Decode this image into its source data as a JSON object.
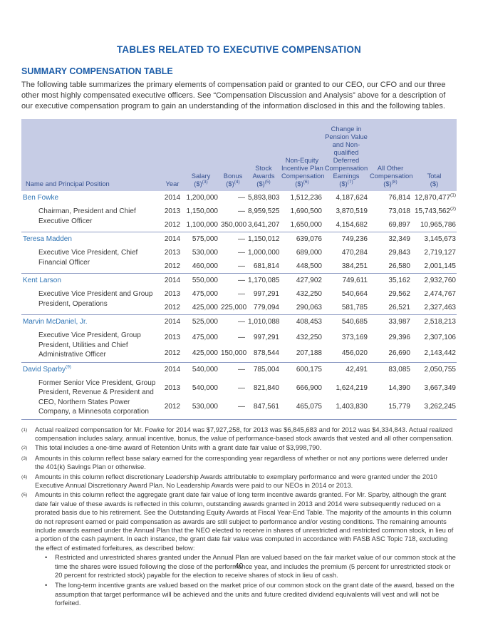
{
  "page": {
    "title": "TABLES RELATED TO EXECUTIVE COMPENSATION",
    "section_heading": "SUMMARY COMPENSATION TABLE",
    "intro": "The following table summarizes the primary elements of compensation paid or granted to our CEO, our CFO and our three other most highly compensated executive officers. See “Compensation Discussion and Analysis” above for a description of our executive compensation program to gain an understanding of the information disclosed in this and the following tables.",
    "page_number": "40"
  },
  "colors": {
    "heading_blue": "#1b5ca8",
    "name_link_blue": "#2e74b5",
    "table_header_bg": "#c6cce5",
    "table_header_text": "#35508f",
    "group_divider": "#8f9cc4",
    "body_text": "#3a3a3a"
  },
  "table": {
    "columns": [
      {
        "lines": [
          "Name and Principal Position"
        ],
        "sup": ""
      },
      {
        "lines": [
          "Year"
        ],
        "sup": ""
      },
      {
        "lines": [
          "Salary",
          "($)"
        ],
        "sup": "3"
      },
      {
        "lines": [
          "Bonus",
          "($)"
        ],
        "sup": "4"
      },
      {
        "lines": [
          "Stock",
          "Awards",
          "($)"
        ],
        "sup": "5"
      },
      {
        "lines": [
          "Non-Equity",
          "Incentive Plan",
          "Compensation",
          "($)"
        ],
        "sup": "6"
      },
      {
        "lines": [
          "Change in",
          "Pension Value",
          "and Non-",
          "qualified",
          "Deferred",
          "Compensation",
          "Earnings",
          "($)"
        ],
        "sup": "7"
      },
      {
        "lines": [
          "All Other",
          "Compensation",
          "($)"
        ],
        "sup": "8"
      },
      {
        "lines": [
          "Total",
          "($)"
        ],
        "sup": ""
      }
    ],
    "groups": [
      {
        "name": "Ben Fowke",
        "name_sup": "",
        "position_lines": [
          "Chairman, President and Chief",
          "Executive Officer"
        ],
        "rows": [
          {
            "values": [
              "2014",
              "1,200,000",
              "—",
              "5,893,803",
              "1,512,236",
              "4,187,624",
              "76,814",
              "12,870,477"
            ],
            "total_sup": "1"
          },
          {
            "values": [
              "2013",
              "1,150,000",
              "—",
              "8,959,525",
              "1,690,500",
              "3,870,519",
              "73,018",
              "15,743,562"
            ],
            "total_sup": "2"
          },
          {
            "values": [
              "2012",
              "1,100,000",
              "350,000",
              "3,641,207",
              "1,650,000",
              "4,154,682",
              "69,897",
              "10,965,786"
            ],
            "total_sup": ""
          }
        ]
      },
      {
        "name": "Teresa Madden",
        "name_sup": "",
        "position_lines": [
          "Executive Vice President, Chief",
          "Financial Officer"
        ],
        "rows": [
          {
            "values": [
              "2014",
              "575,000",
              "—",
              "1,150,012",
              "639,076",
              "749,236",
              "32,349",
              "3,145,673"
            ],
            "total_sup": ""
          },
          {
            "values": [
              "2013",
              "530,000",
              "—",
              "1,000,000",
              "689,000",
              "470,284",
              "29,843",
              "2,719,127"
            ],
            "total_sup": ""
          },
          {
            "values": [
              "2012",
              "460,000",
              "—",
              "681,814",
              "448,500",
              "384,251",
              "26,580",
              "2,001,145"
            ],
            "total_sup": ""
          }
        ]
      },
      {
        "name": "Kent Larson",
        "name_sup": "",
        "position_lines": [
          "Executive Vice President and Group",
          "President, Operations"
        ],
        "rows": [
          {
            "values": [
              "2014",
              "550,000",
              "—",
              "1,170,085",
              "427,902",
              "749,611",
              "35,162",
              "2,932,760"
            ],
            "total_sup": ""
          },
          {
            "values": [
              "2013",
              "475,000",
              "—",
              "997,291",
              "432,250",
              "540,664",
              "29,562",
              "2,474,767"
            ],
            "total_sup": ""
          },
          {
            "values": [
              "2012",
              "425,000",
              "225,000",
              "779,094",
              "290,063",
              "581,785",
              "26,521",
              "2,327,463"
            ],
            "total_sup": ""
          }
        ]
      },
      {
        "name": "Marvin McDaniel, Jr.",
        "name_sup": "",
        "position_lines": [
          "Executive Vice President, Group",
          "President, Utilities and Chief",
          "Administrative Officer"
        ],
        "rows": [
          {
            "values": [
              "2014",
              "525,000",
              "—",
              "1,010,088",
              "408,453",
              "540,685",
              "33,987",
              "2,518,213"
            ],
            "total_sup": ""
          },
          {
            "values": [
              "2013",
              "475,000",
              "—",
              "997,291",
              "432,250",
              "373,169",
              "29,396",
              "2,307,106"
            ],
            "total_sup": ""
          },
          {
            "values": [
              "2012",
              "425,000",
              "150,000",
              "878,544",
              "207,188",
              "456,020",
              "26,690",
              "2,143,442"
            ],
            "total_sup": ""
          }
        ]
      },
      {
        "name": "David Sparby",
        "name_sup": "9",
        "position_lines": [
          "Former Senior Vice President, Group",
          "President, Revenue & President and",
          "CEO, Northern States Power",
          "Company, a Minnesota corporation"
        ],
        "rows": [
          {
            "values": [
              "2014",
              "540,000",
              "—",
              "785,004",
              "600,175",
              "42,491",
              "83,085",
              "2,050,755"
            ],
            "total_sup": ""
          },
          {
            "values": [
              "2013",
              "540,000",
              "—",
              "821,840",
              "666,900",
              "1,624,219",
              "14,390",
              "3,667,349"
            ],
            "total_sup": ""
          },
          {
            "values": [
              "2012",
              "530,000",
              "—",
              "847,561",
              "465,075",
              "1,403,830",
              "15,779",
              "3,262,245"
            ],
            "total_sup": ""
          }
        ]
      }
    ]
  },
  "footnotes": [
    {
      "marker": "(1)",
      "text": "Actual realized compensation for Mr. Fowke for 2014 was $7,927,258, for 2013 was $6,845,683 and for 2012 was $4,334,843. Actual realized compensation includes salary, annual incentive, bonus, the value of performance-based stock awards that vested and all other compensation.",
      "bullets": []
    },
    {
      "marker": "(2)",
      "text": "This total includes a one-time award of Retention Units with a grant date fair value of $3,998,790.",
      "bullets": []
    },
    {
      "marker": "(3)",
      "text": "Amounts in this column reflect base salary earned for the corresponding year regardless of whether or not any portions were deferred under the 401(k) Savings Plan or otherwise.",
      "bullets": []
    },
    {
      "marker": "(4)",
      "text": "Amounts in this column reflect discretionary Leadership Awards attributable to exemplary performance and were granted under the 2010 Executive Annual Discretionary Award Plan. No Leadership Awards were paid to our NEOs in 2014 or 2013.",
      "bullets": []
    },
    {
      "marker": "(5)",
      "text": "Amounts in this column reflect the aggregate grant date fair value of long term incentive awards granted. For Mr. Sparby, although the grant date fair value of these awards is reflected in this column, outstanding awards granted in 2013 and 2014 were subsequently reduced on a prorated basis due to his retirement. See the Outstanding Equity Awards at Fiscal Year-End Table. The majority of the amounts in this column do not represent earned or paid compensation as awards are still subject to performance and/or vesting conditions. The remaining amounts include awards earned under the Annual Plan that the NEO elected to receive in shares of unrestricted and restricted common stock, in lieu of a portion of the cash payment. In each instance, the grant date fair value was computed in accordance with FASB ASC Topic 718, excluding the effect of estimated forfeitures, as described below:",
      "bullets": [
        "Restricted and unrestricted shares granted under the Annual Plan are valued based on the fair market value of our common stock at the time the shares were issued following the close of the performance year, and includes the premium (5 percent for unrestricted stock or 20 percent for restricted stock) payable for the election to receive shares of stock in lieu of cash.",
        "The long-term incentive grants are valued based on the market price of our common stock on the grant date of the award, based on the assumption that target performance will be achieved and the units and future credited dividend equivalents will vest and will not be forfeited."
      ]
    }
  ]
}
